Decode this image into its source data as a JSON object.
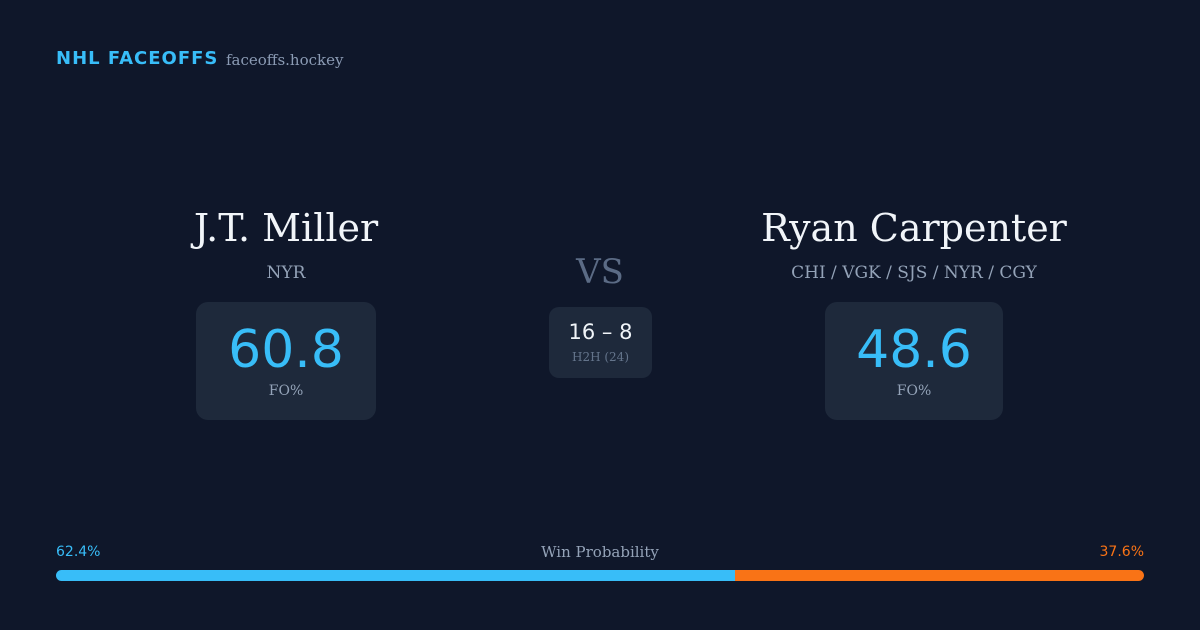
{
  "header": {
    "title": "NHL FACEOFFS",
    "site": "faceoffs.hockey"
  },
  "players": [
    {
      "name": "J.T. Miller",
      "teams": "NYR",
      "fo_pct": 60.8,
      "fo_label": "FO%"
    },
    {
      "name": "Ryan Carpenter",
      "teams": "CHI / VGK / SJS / NYR / CGY",
      "fo_pct": 48.6,
      "fo_label": "FO%"
    }
  ],
  "vs": "VS",
  "h2h": {
    "score": "16 – 8",
    "label": "H2H (24)"
  },
  "win_probability": {
    "label": "Win Probability",
    "left": {
      "value": 62.4,
      "label": "62.4%",
      "color": "#38bdf8"
    },
    "right": {
      "value": 37.6,
      "label": "37.6%",
      "color": "#f97316"
    }
  }
}
